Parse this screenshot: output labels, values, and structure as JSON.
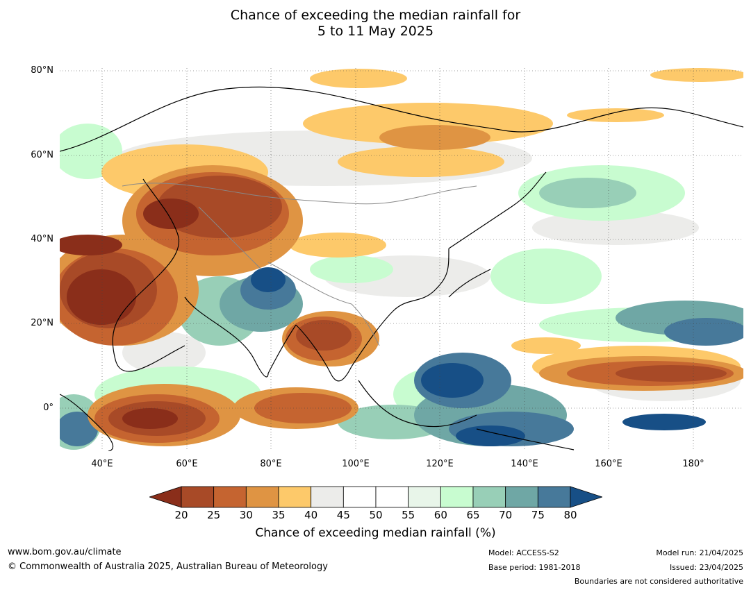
{
  "title": {
    "line1": "Chance of exceeding the median rainfall for",
    "line2": "5 to 11 May 2025"
  },
  "map": {
    "latitude_labels": [
      "80°N",
      "60°N",
      "40°N",
      "20°N",
      "0°"
    ],
    "longitude_labels": [
      "40°E",
      "60°E",
      "80°E",
      "100°E",
      "120°E",
      "140°E",
      "160°E",
      "180°"
    ],
    "extent": {
      "lon": [
        30,
        190
      ],
      "lat": [
        -10,
        80
      ]
    }
  },
  "colorbar": {
    "label": "Chance of exceeding median rainfall (%)",
    "ticks": [
      "20",
      "25",
      "30",
      "35",
      "40",
      "45",
      "50",
      "55",
      "60",
      "65",
      "70",
      "75",
      "80"
    ],
    "colors": [
      "#8a2e1a",
      "#a84a27",
      "#c56430",
      "#df9443",
      "#fdc96a",
      "#ececea",
      "#ffffff",
      "#ffffff",
      "#e8f5e9",
      "#c8fcd0",
      "#98cfb7",
      "#6fa7a5",
      "#47799a",
      "#174f86"
    ]
  },
  "footer": {
    "website": "www.bom.gov.au/climate",
    "copyright": "© Commonwealth of Australia 2025, Australian Bureau of Meteorology",
    "model": "Model: ACCESS-S2",
    "base_period": "Base period: 1981-2018",
    "model_run": "Model run: 21/04/2025",
    "issued": "Issued: 23/04/2025",
    "disclaimer": "Boundaries are not considered authoritative"
  }
}
